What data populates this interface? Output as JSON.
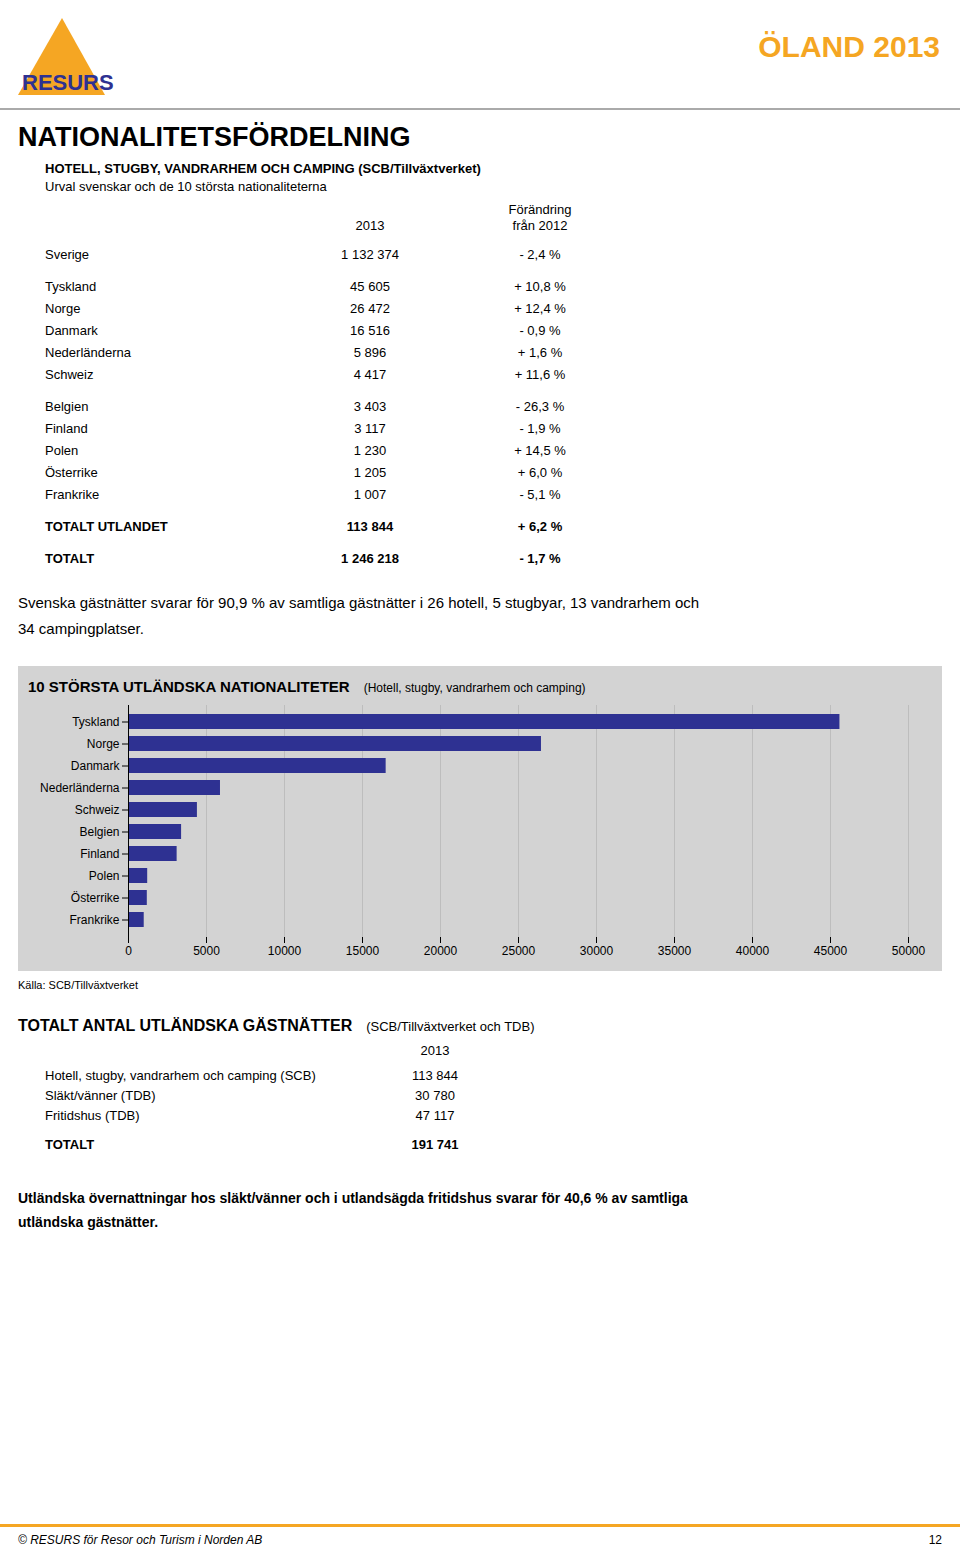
{
  "chart_data": {
    "type": "bar",
    "orientation": "horizontal",
    "title": "10 STÖRSTA UTLÄNDSKA NATIONALITETER",
    "subtitle": "(Hotell, stugby, vandrarhem och camping)",
    "categories": [
      "Tyskland",
      "Norge",
      "Danmark",
      "Nederländerna",
      "Schweiz",
      "Belgien",
      "Finland",
      "Polen",
      "Österrike",
      "Frankrike"
    ],
    "values": [
      45605,
      26472,
      16516,
      5896,
      4417,
      3403,
      3117,
      1230,
      1205,
      1007
    ],
    "color": "#2E3192",
    "xlim": [
      0,
      50000
    ],
    "xticks": [
      0,
      5000,
      10000,
      15000,
      20000,
      25000,
      30000,
      35000,
      40000,
      45000,
      50000
    ],
    "grid": true,
    "source": "Källa: SCB/Tillväxtverket"
  },
  "page": {
    "logo": "RESURS",
    "logo_color": "#2E3192",
    "accent_color": "#F5A623",
    "header": "ÖLAND 2013",
    "title": "NATIONALITETSFÖRDELNING",
    "subtitle_bold": "HOTELL, STUGBY, VANDRARHEM OCH CAMPING (SCB/Tillväxtverket)",
    "subtitle": "Urval svenskar och de 10 största nationaliteterna",
    "table_columns": [
      [
        "2013"
      ],
      [
        "Förändring",
        "från 2012"
      ]
    ],
    "table_groups": [
      [
        {
          "name": "Sverige",
          "value": "1 132 374",
          "change": "- 2,4 %",
          "bold": false
        }
      ],
      [
        {
          "name": "Tyskland",
          "value": "45 605",
          "change": "+ 10,8 %",
          "bold": false
        },
        {
          "name": "Norge",
          "value": "26 472",
          "change": "+ 12,4 %",
          "bold": false
        },
        {
          "name": "Danmark",
          "value": "16 516",
          "change": "- 0,9 %",
          "bold": false
        },
        {
          "name": "Nederländerna",
          "value": "5 896",
          "change": "+ 1,6 %",
          "bold": false
        },
        {
          "name": "Schweiz",
          "value": "4 417",
          "change": "+ 11,6 %",
          "bold": false
        }
      ],
      [
        {
          "name": "Belgien",
          "value": "3 403",
          "change": "- 26,3 %",
          "bold": false
        },
        {
          "name": "Finland",
          "value": "3 117",
          "change": "- 1,9 %",
          "bold": false
        },
        {
          "name": "Polen",
          "value": "1 230",
          "change": "+ 14,5 %",
          "bold": false
        },
        {
          "name": "Österrike",
          "value": "1 205",
          "change": "+ 6,0 %",
          "bold": false
        },
        {
          "name": "Frankrike",
          "value": "1 007",
          "change": "- 5,1 %",
          "bold": false
        }
      ],
      [
        {
          "name": "TOTALT UTLANDET",
          "value": "113 844",
          "change": "+ 6,2 %",
          "bold": true
        }
      ],
      [
        {
          "name": "TOTALT",
          "value": "1 246 218",
          "change": "- 1,7 %",
          "bold": true
        }
      ]
    ],
    "summary": [
      "Svenska gästnätter svarar för 90,9 % av samtliga gästnätter i 26 hotell, 5 stugbyar, 13 vandrarhem och",
      "34 campingplatser."
    ],
    "section2_title": "TOTALT ANTAL UTLÄNDSKA GÄSTNÄTTER",
    "section2_subtitle": "(SCB/Tillväxtverket och TDB)",
    "section2_year": "2013",
    "section2_rows": [
      {
        "label": "Hotell, stugby, vandrarhem och camping (SCB)",
        "value": "113 844"
      },
      {
        "label": "Släkt/vänner (TDB)",
        "value": "30 780"
      },
      {
        "label": "Fritidshus (TDB)",
        "value": "47 117"
      }
    ],
    "section2_total_label": "TOTALT",
    "section2_total_value": "191 741",
    "section2_footer": [
      "Utländska övernattningar hos släkt/vänner och i utlandsägda fritidshus svarar för 40,6 % av samtliga",
      "utländska gästnätter."
    ],
    "footer_left": "© RESURS för Resor och Turism i Norden AB",
    "footer_right": "12"
  }
}
